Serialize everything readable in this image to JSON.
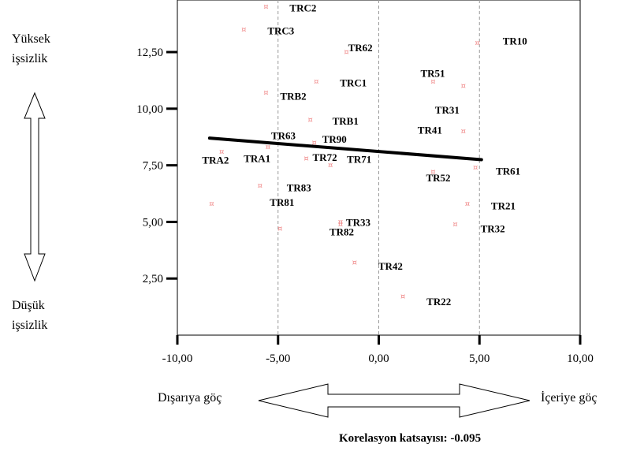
{
  "chart_data": {
    "type": "scatter",
    "x_ticks": [
      "-10,00",
      "-5,00",
      "0,00",
      "5,00",
      "10,00"
    ],
    "y_ticks": [
      "2,50",
      "5,00",
      "7,50",
      "10,00",
      "12,50"
    ],
    "xlim": [
      -10,
      10
    ],
    "ylim": [
      0,
      14.8
    ],
    "grid_vertical_at": [
      -5,
      0,
      5
    ],
    "points": [
      {
        "label": "TRC2",
        "x": -5.6,
        "y": 14.5
      },
      {
        "label": "TRC3",
        "x": -6.7,
        "y": 13.5
      },
      {
        "label": "TR62",
        "x": -1.6,
        "y": 12.5
      },
      {
        "label": "TR10",
        "x": 4.9,
        "y": 12.9
      },
      {
        "label": "TR51",
        "x": 2.7,
        "y": 11.2
      },
      {
        "label": "TRC1",
        "x": -3.1,
        "y": 11.2
      },
      {
        "label": "TRB2",
        "x": -5.6,
        "y": 10.7
      },
      {
        "label": "TR31",
        "x": 4.2,
        "y": 11.0
      },
      {
        "label": "TRB1",
        "x": -3.4,
        "y": 9.5
      },
      {
        "label": "TR41",
        "x": 4.2,
        "y": 9.0
      },
      {
        "label": "TR63",
        "x": -5.5,
        "y": 8.3
      },
      {
        "label": "TR90",
        "x": -3.2,
        "y": 8.5
      },
      {
        "label": "TRA1",
        "x": -7.8,
        "y": 8.1
      },
      {
        "label": "TR72",
        "x": -3.6,
        "y": 7.8
      },
      {
        "label": "TRA2",
        "x": -8.3,
        "y": 5.8
      },
      {
        "label": "TR71",
        "x": -2.4,
        "y": 7.5
      },
      {
        "label": "TR52",
        "x": 2.7,
        "y": 7.2
      },
      {
        "label": "TR61",
        "x": 4.8,
        "y": 7.4
      },
      {
        "label": "TR83",
        "x": -5.9,
        "y": 6.6
      },
      {
        "label": "TR81",
        "x": -4.9,
        "y": 4.7
      },
      {
        "label": "TR21",
        "x": 4.4,
        "y": 5.8
      },
      {
        "label": "TR33",
        "x": -1.9,
        "y": 5.0
      },
      {
        "label": "TR82",
        "x": -1.9,
        "y": 4.9
      },
      {
        "label": "TR32",
        "x": 3.8,
        "y": 4.9
      },
      {
        "label": "TR42",
        "x": -1.2,
        "y": 3.2
      },
      {
        "label": "TR22",
        "x": 1.2,
        "y": 1.7
      }
    ],
    "trend_line": {
      "x": [
        -8.4,
        5.1
      ],
      "y": [
        8.7,
        7.75
      ]
    }
  },
  "labels": {
    "top_left_line1": "Yüksek",
    "top_left_line2": "işsizlik",
    "bottom_left_line1": "Düşük",
    "bottom_left_line2": "işsizlik",
    "bottom_left": "Dışarıya göç",
    "bottom_right": "İçeriye göç",
    "correlation": "Korelasyon katsayısı:  -0.095"
  },
  "marker_glyph": "¤",
  "colors": {
    "marker": "#f08a8a",
    "trend": "#000000",
    "grid": "#9a9a9a"
  }
}
